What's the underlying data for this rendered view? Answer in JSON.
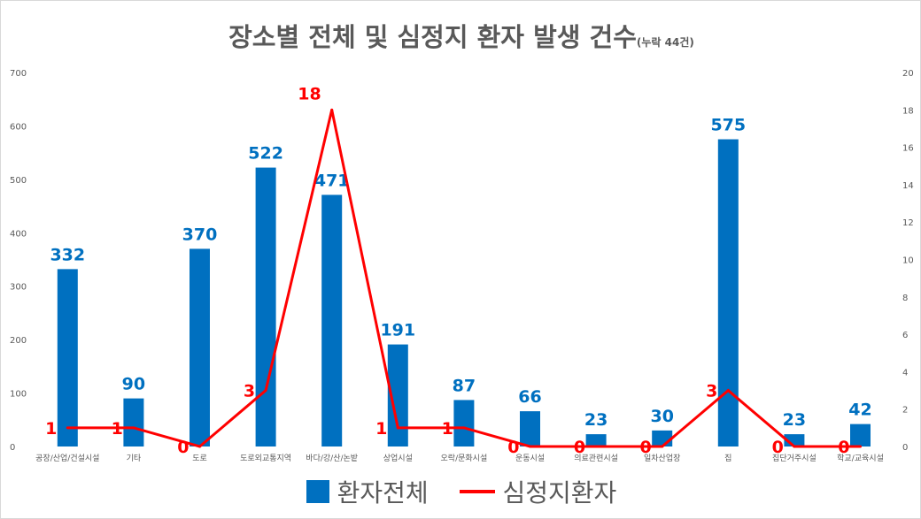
{
  "chart_data": {
    "type": "bar+line",
    "title": "장소별 전체 및 심정지 환자 발생 건수",
    "subtitle": "(누락 44건)",
    "categories": [
      "공장/산업/건설시설",
      "기타",
      "도로",
      "도로외교통지역",
      "바다/강/산/논밭",
      "상업시설",
      "오락/문화시설",
      "운동시설",
      "의료관련시설",
      "일차산업장",
      "집",
      "집단거주시설",
      "학교/교육시설"
    ],
    "series": [
      {
        "name": "환자전체",
        "type": "bar",
        "axis": "left",
        "color": "#0070C0",
        "values": [
          332,
          90,
          370,
          522,
          471,
          191,
          87,
          66,
          23,
          30,
          575,
          23,
          42
        ]
      },
      {
        "name": "심정지환자",
        "type": "line",
        "axis": "right",
        "color": "#FF0000",
        "values": [
          1,
          1,
          0,
          3,
          18,
          1,
          1,
          0,
          0,
          0,
          3,
          0,
          0
        ]
      }
    ],
    "ylim": [
      0,
      700
    ],
    "yticks": [
      0,
      100,
      200,
      300,
      400,
      500,
      600,
      700
    ],
    "y2lim": [
      0,
      20
    ],
    "y2ticks": [
      0,
      2,
      4,
      6,
      8,
      10,
      12,
      14,
      16,
      18,
      20
    ],
    "legend": "bottom"
  }
}
